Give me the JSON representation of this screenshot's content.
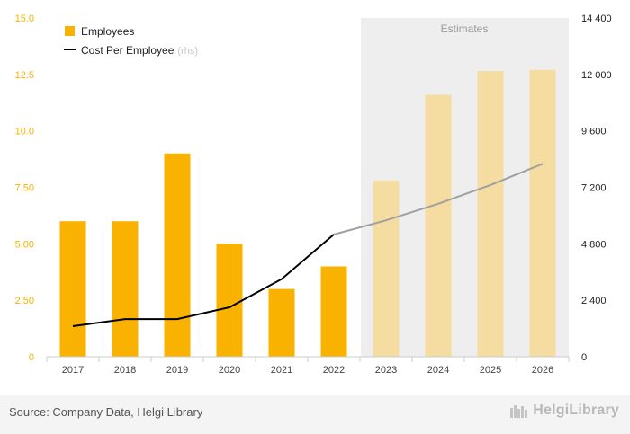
{
  "chart_data": {
    "type": "bar",
    "categories": [
      "2017",
      "2018",
      "2019",
      "2020",
      "2021",
      "2022",
      "2023",
      "2024",
      "2025",
      "2026"
    ],
    "series": [
      {
        "name": "Employees",
        "type": "bar",
        "axis": "left",
        "values": [
          6,
          6,
          9,
          5,
          3,
          4,
          7.8,
          11.6,
          12.65,
          12.7
        ],
        "estimated": [
          false,
          false,
          false,
          false,
          false,
          false,
          true,
          true,
          true,
          true
        ]
      },
      {
        "name": "Cost Per Employee",
        "name_suffix": "(rhs)",
        "type": "line",
        "axis": "right",
        "values": [
          1300,
          1600,
          1600,
          2100,
          3300,
          5200,
          5800,
          6500,
          7300,
          8200
        ],
        "estimated": [
          false,
          false,
          false,
          false,
          false,
          false,
          true,
          true,
          true,
          true
        ]
      }
    ],
    "left_axis": {
      "ticks": [
        "0",
        "2.50",
        "5.00",
        "7.50",
        "10.0",
        "12.5",
        "15.0"
      ],
      "ylim": [
        0,
        15
      ]
    },
    "right_axis": {
      "ticks": [
        "0",
        "2 400",
        "4 800",
        "7 200",
        "9 600",
        "12 000",
        "14 400"
      ],
      "ylim": [
        0,
        14400
      ]
    },
    "estimates_label": "Estimates",
    "legend_position": "top-left",
    "grid": false,
    "colors": {
      "bar": "#f9b200",
      "bar_estimate": "#f5dca0",
      "line": "#000000",
      "line_estimate": "#a0a0a0",
      "left_axis_text": "#f9b200",
      "estimates_band": "#eeeeee"
    }
  },
  "footer": {
    "source": "Source: Company Data, Helgi Library",
    "logo_text": "HelgiLibrary"
  }
}
